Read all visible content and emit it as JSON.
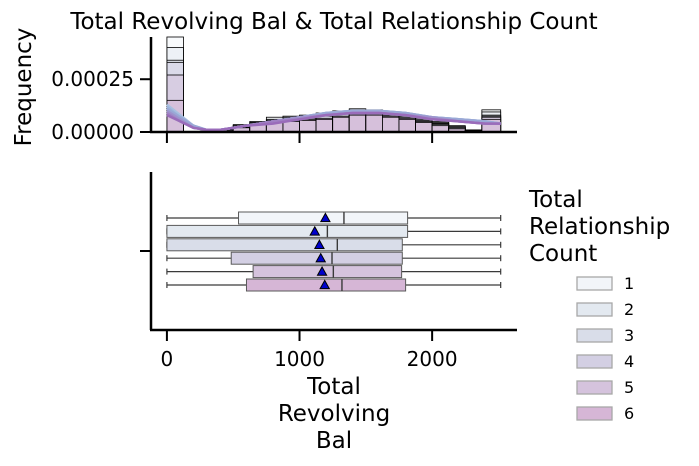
{
  "chart_data": {
    "title": "Total Revolving Bal & Total Relationship Count",
    "top_panel": {
      "type": "histogram",
      "ylabel": "Frequency",
      "ylim": [
        0,
        0.00045
      ],
      "yticks": [
        0,
        0.00025
      ],
      "ytick_labels": [
        "0.00000",
        "0.00025"
      ],
      "bins": [
        {
          "x0": 0,
          "x1": 125,
          "values": [
            0.00045,
            0.0004,
            0.00034,
            0.00033,
            0.00027,
            0.00015
          ]
        },
        {
          "x0": 125,
          "x1": 250,
          "values": [
            0,
            0,
            0,
            0,
            0,
            0
          ]
        },
        {
          "x0": 250,
          "x1": 375,
          "values": [
            3e-06,
            3e-06,
            3e-06,
            3e-06,
            3e-06,
            3e-06
          ]
        },
        {
          "x0": 375,
          "x1": 500,
          "values": [
            1.2e-05,
            1.2e-05,
            1e-05,
            1e-05,
            1e-05,
            8e-06
          ]
        },
        {
          "x0": 500,
          "x1": 625,
          "values": [
            3.5e-05,
            3e-05,
            3e-05,
            2.5e-05,
            2.2e-05,
            2e-05
          ]
        },
        {
          "x0": 625,
          "x1": 750,
          "values": [
            5e-05,
            4.5e-05,
            4.5e-05,
            4e-05,
            3.5e-05,
            3.5e-05
          ]
        },
        {
          "x0": 750,
          "x1": 875,
          "values": [
            7e-05,
            6e-05,
            6e-05,
            5.5e-05,
            5e-05,
            4.5e-05
          ]
        },
        {
          "x0": 875,
          "x1": 1000,
          "values": [
            7.5e-05,
            7e-05,
            6.5e-05,
            6e-05,
            5.5e-05,
            5e-05
          ]
        },
        {
          "x0": 1000,
          "x1": 1125,
          "values": [
            8e-05,
            7.5e-05,
            7e-05,
            6.5e-05,
            6e-05,
            5.5e-05
          ]
        },
        {
          "x0": 1125,
          "x1": 1250,
          "values": [
            9e-05,
            8.5e-05,
            8e-05,
            7.5e-05,
            6.5e-05,
            6e-05
          ]
        },
        {
          "x0": 1250,
          "x1": 1375,
          "values": [
            0.0001,
            9.5e-05,
            9e-05,
            8.5e-05,
            7.5e-05,
            7e-05
          ]
        },
        {
          "x0": 1375,
          "x1": 1500,
          "values": [
            0.00011,
            0.000105,
            0.0001,
            9e-05,
            8.5e-05,
            8e-05
          ]
        },
        {
          "x0": 1500,
          "x1": 1625,
          "values": [
            0.000105,
            0.0001,
            9.5e-05,
            9e-05,
            8.5e-05,
            8e-05
          ]
        },
        {
          "x0": 1625,
          "x1": 1750,
          "values": [
            9.5e-05,
            9e-05,
            8.5e-05,
            8e-05,
            7.5e-05,
            7e-05
          ]
        },
        {
          "x0": 1750,
          "x1": 1875,
          "values": [
            8.5e-05,
            8e-05,
            7.5e-05,
            7e-05,
            6.5e-05,
            6e-05
          ]
        },
        {
          "x0": 1875,
          "x1": 2000,
          "values": [
            7e-05,
            6.5e-05,
            6e-05,
            5.5e-05,
            5e-05,
            4.5e-05
          ]
        },
        {
          "x0": 2000,
          "x1": 2125,
          "values": [
            5e-05,
            4.5e-05,
            4e-05,
            4e-05,
            3.5e-05,
            3e-05
          ]
        },
        {
          "x0": 2125,
          "x1": 2250,
          "values": [
            3e-05,
            2.5e-05,
            2.5e-05,
            2e-05,
            2e-05,
            1.5e-05
          ]
        },
        {
          "x0": 2250,
          "x1": 2375,
          "values": [
            1e-05,
            8e-06,
            8e-06,
            6e-06,
            6e-06,
            5e-06
          ]
        },
        {
          "x0": 2375,
          "x1": 2517,
          "values": [
            0.000105,
            9.5e-05,
            8e-05,
            7.5e-05,
            7e-05,
            6e-05
          ]
        }
      ],
      "kde": [
        {
          "x": [
            0,
            100,
            200,
            300,
            400,
            600,
            800,
            1000,
            1200,
            1400,
            1600,
            1800,
            2000,
            2200,
            2400,
            2517
          ],
          "y": [
            0.00013,
            8e-05,
            3e-05,
            1e-05,
            1e-05,
            3e-05,
            5e-05,
            7e-05,
            9e-05,
            0.0001,
            0.0001,
            9e-05,
            7e-05,
            6e-05,
            5e-05,
            4e-05
          ]
        },
        {
          "x": [
            0,
            100,
            200,
            300,
            400,
            600,
            800,
            1000,
            1200,
            1400,
            1600,
            1800,
            2000,
            2200,
            2400,
            2517
          ],
          "y": [
            0.00012,
            7e-05,
            3e-05,
            1e-05,
            1e-05,
            3e-05,
            5e-05,
            7e-05,
            9e-05,
            0.0001,
            0.0001,
            9e-05,
            7e-05,
            6e-05,
            5e-05,
            4e-05
          ]
        },
        {
          "x": [
            0,
            100,
            200,
            300,
            400,
            600,
            800,
            1000,
            1200,
            1400,
            1600,
            1800,
            2000,
            2200,
            2400,
            2517
          ],
          "y": [
            0.00011,
            7e-05,
            3e-05,
            1e-05,
            1e-05,
            3e-05,
            5e-05,
            7e-05,
            9e-05,
            0.0001,
            0.0001,
            9e-05,
            7e-05,
            6e-05,
            5e-05,
            4e-05
          ]
        },
        {
          "x": [
            0,
            100,
            200,
            300,
            400,
            600,
            800,
            1000,
            1200,
            1400,
            1600,
            1800,
            2000,
            2200,
            2400,
            2517
          ],
          "y": [
            0.0001,
            6e-05,
            2e-05,
            1e-05,
            1e-05,
            3e-05,
            5e-05,
            7e-05,
            8e-05,
            9e-05,
            9e-05,
            8e-05,
            7e-05,
            5e-05,
            4e-05,
            4e-05
          ]
        },
        {
          "x": [
            0,
            100,
            200,
            300,
            400,
            600,
            800,
            1000,
            1200,
            1400,
            1600,
            1800,
            2000,
            2200,
            2400,
            2517
          ],
          "y": [
            9e-05,
            5e-05,
            2e-05,
            1e-05,
            1e-05,
            3e-05,
            5e-05,
            6e-05,
            8e-05,
            9e-05,
            9e-05,
            8e-05,
            6e-05,
            5e-05,
            4e-05,
            4e-05
          ]
        },
        {
          "x": [
            0,
            100,
            200,
            300,
            400,
            600,
            800,
            1000,
            1200,
            1400,
            1600,
            1800,
            2000,
            2200,
            2400,
            2517
          ],
          "y": [
            8e-05,
            5e-05,
            2e-05,
            1e-05,
            1e-05,
            3e-05,
            4e-05,
            6e-05,
            8e-05,
            9e-05,
            9e-05,
            8e-05,
            6e-05,
            5e-05,
            4e-05,
            4e-05
          ]
        }
      ]
    },
    "bottom_panel": {
      "type": "boxplot",
      "xlabel": "Total\nRevolving\nBal",
      "xlim": [
        -120,
        2640
      ],
      "xticks": [
        0,
        1000,
        2000
      ],
      "xtick_labels": [
        "0",
        "1000",
        "2000"
      ],
      "boxes": [
        {
          "name": "1",
          "min": 0,
          "q1": 540,
          "median": 1335,
          "q3": 1815,
          "max": 2517,
          "mean": 1195
        },
        {
          "name": "2",
          "min": 0,
          "q1": 0,
          "median": 1210,
          "q3": 1815,
          "max": 2517,
          "mean": 1115
        },
        {
          "name": "3",
          "min": 0,
          "q1": 0,
          "median": 1285,
          "q3": 1775,
          "max": 2517,
          "mean": 1150
        },
        {
          "name": "4",
          "min": 0,
          "q1": 485,
          "median": 1245,
          "q3": 1775,
          "max": 2517,
          "mean": 1160
        },
        {
          "name": "5",
          "min": 0,
          "q1": 650,
          "median": 1255,
          "q3": 1770,
          "max": 2517,
          "mean": 1170
        },
        {
          "name": "6",
          "min": 0,
          "q1": 600,
          "median": 1320,
          "q3": 1800,
          "max": 2517,
          "mean": 1190
        }
      ]
    },
    "legend": {
      "title": "Total\nRelationship\nCount",
      "placement": "right",
      "entries": [
        "1",
        "2",
        "3",
        "4",
        "5",
        "6"
      ]
    },
    "colors": [
      "#f2f5f9",
      "#e3e9f0",
      "#d9dde9",
      "#d3cfe3",
      "#d5c3dd",
      "#d6b6d6"
    ],
    "kde_colors": [
      "#a9c0e0",
      "#9cb4dc",
      "#9aa8d6",
      "#9e93cc",
      "#a080c4",
      "#9a6cba"
    ],
    "mean_marker_color": "#0000cc"
  }
}
